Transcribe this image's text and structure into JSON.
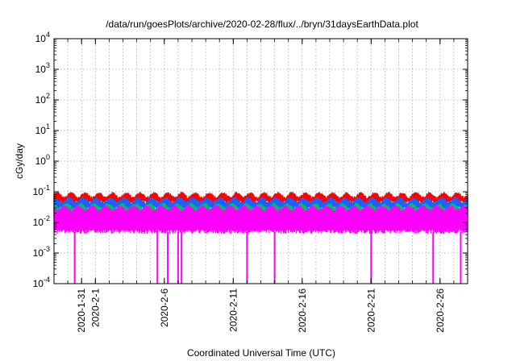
{
  "chart_data": {
    "type": "line",
    "title": "/data/run/goesPlots/archive/2020-02-28/flux/../bryn/31daysEarthData.plot",
    "xlabel": "Coordinated Universal Time (UTC)",
    "ylabel": "cGy/day",
    "yscale": "log",
    "ylim": [
      0.0001,
      10000
    ],
    "xlim": [
      "2020-01-29",
      "2020-02-28"
    ],
    "grid": true,
    "legend": "none",
    "y_ticks": [
      {
        "base": "10",
        "exp": "-4"
      },
      {
        "base": "10",
        "exp": "-3"
      },
      {
        "base": "10",
        "exp": "-2"
      },
      {
        "base": "10",
        "exp": "-1"
      },
      {
        "base": "10",
        "exp": "0"
      },
      {
        "base": "10",
        "exp": "1"
      },
      {
        "base": "10",
        "exp": "2"
      },
      {
        "base": "10",
        "exp": "3"
      },
      {
        "base": "10",
        "exp": "4"
      }
    ],
    "x_ticks": [
      {
        "date": "2020-01-31",
        "label": "2020-1-31"
      },
      {
        "date": "2020-02-01",
        "label": "2020-2-1"
      },
      {
        "date": "2020-02-06",
        "label": "2020-2-6"
      },
      {
        "date": "2020-02-11",
        "label": "2020-2-11"
      },
      {
        "date": "2020-02-16",
        "label": "2020-2-16"
      },
      {
        "date": "2020-02-21",
        "label": "2020-2-21"
      },
      {
        "date": "2020-02-26",
        "label": "2020-2-26"
      }
    ],
    "series": [
      {
        "color": "#ff0000",
        "typical_high": 0.08,
        "typical_low": 0.045
      },
      {
        "color": "#1f5fff",
        "typical_high": 0.055,
        "typical_low": 0.028
      },
      {
        "color": "#00c060",
        "typical_high": 0.035,
        "typical_low": 0.02
      },
      {
        "color": "#ff00ff",
        "typical_high": 0.03,
        "typical_low": 0.005
      }
    ],
    "dropouts": [
      {
        "date": "2020-01-30T12:00",
        "value": 0.0001
      },
      {
        "date": "2020-02-05T12:00",
        "value": 0.0001
      },
      {
        "date": "2020-02-06T06:00",
        "value": 0.0001
      },
      {
        "date": "2020-02-07T00:00",
        "value": 0.0001
      },
      {
        "date": "2020-02-07T06:00",
        "value": 0.0001
      },
      {
        "date": "2020-02-12T00:00",
        "value": 0.0001
      },
      {
        "date": "2020-02-14T00:00",
        "value": 0.0001
      },
      {
        "date": "2020-02-21T00:00",
        "value": 0.0001
      },
      {
        "date": "2020-02-25T12:00",
        "value": 0.0001
      },
      {
        "date": "2020-02-27T12:00",
        "value": 0.0001
      }
    ]
  }
}
